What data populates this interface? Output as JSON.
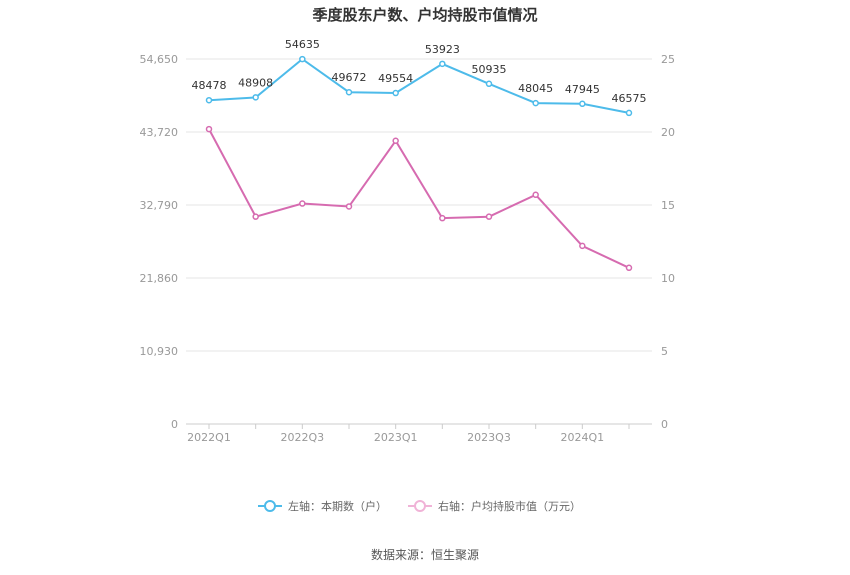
{
  "chart_data": {
    "type": "line",
    "title": "季度股东户数、户均持股市值情况",
    "x": [
      "2022Q1",
      "2022Q2",
      "2022Q3",
      "2022Q4",
      "2023Q1",
      "2023Q2",
      "2023Q3",
      "2023Q4",
      "2024Q1",
      "2024Q2"
    ],
    "x_tick_labels": [
      "2022Q1",
      "2022Q3",
      "2023Q1",
      "2023Q3",
      "2024Q1"
    ],
    "left_axis": {
      "ylim": [
        0,
        54650
      ],
      "ticks": [
        "0",
        "10,930",
        "21,860",
        "32,790",
        "43,720",
        "54,650"
      ]
    },
    "right_axis": {
      "ylim": [
        0,
        25
      ],
      "ticks": [
        "0",
        "5",
        "10",
        "15",
        "20",
        "25"
      ]
    },
    "series": [
      {
        "name": "左轴：本期数（户）",
        "axis": "left",
        "color": "#4dbbea",
        "values": [
          48478,
          48908,
          54635,
          49672,
          49554,
          53923,
          50935,
          48045,
          47945,
          46575
        ],
        "labels": [
          "48478",
          "48908",
          "54635",
          "49672",
          "49554",
          "53923",
          "50935",
          "48045",
          "47945",
          "46575"
        ]
      },
      {
        "name": "右轴：户均持股市值（万元）",
        "axis": "right",
        "color": "#d66bb0",
        "values": [
          20.2,
          14.2,
          15.1,
          14.9,
          19.4,
          14.1,
          14.2,
          15.7,
          12.2,
          10.7
        ]
      }
    ],
    "grid": true,
    "legend": "bottom-center"
  },
  "source": "数据来源：恒生聚源"
}
